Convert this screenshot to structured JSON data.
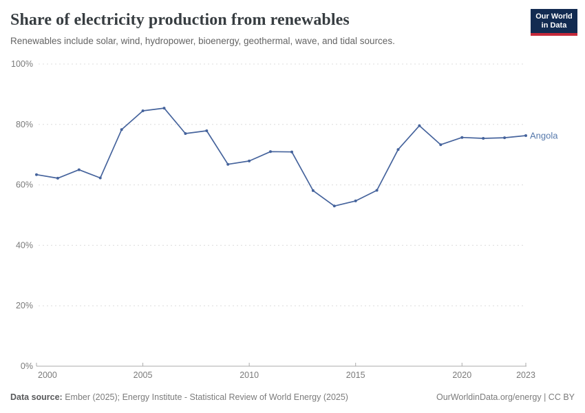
{
  "header": {
    "title": "Share of electricity production from renewables",
    "subtitle": "Renewables include solar, wind, hydropower, bioenergy, geothermal, wave, and tidal sources.",
    "logo": {
      "line1": "Our World",
      "line2": "in Data"
    }
  },
  "chart_data": {
    "type": "line",
    "title": "Share of electricity production from renewables",
    "xlabel": "",
    "ylabel": "",
    "xlim": [
      2000,
      2023
    ],
    "ylim": [
      0,
      100
    ],
    "yticks": [
      0,
      20,
      40,
      60,
      80,
      100
    ],
    "ytick_suffix": "%",
    "xticks": [
      2000,
      2005,
      2010,
      2015,
      2020,
      2023
    ],
    "grid": "horizontal-dashed",
    "legend_position": "end-of-line-label",
    "series": [
      {
        "name": "Angola",
        "color": "#45639c",
        "label_color": "#5578ab",
        "x": [
          2000,
          2001,
          2002,
          2003,
          2004,
          2005,
          2006,
          2007,
          2008,
          2009,
          2010,
          2011,
          2012,
          2013,
          2014,
          2015,
          2016,
          2017,
          2018,
          2019,
          2020,
          2021,
          2022,
          2023
        ],
        "values": [
          63.4,
          62.2,
          65.0,
          62.3,
          78.3,
          84.5,
          85.4,
          77.0,
          77.9,
          66.8,
          67.9,
          71.0,
          70.9,
          58.1,
          53.0,
          54.7,
          58.2,
          71.7,
          79.6,
          73.3,
          75.7,
          75.4,
          75.6,
          76.3
        ]
      }
    ]
  },
  "footer": {
    "datasource_label": "Data source:",
    "datasource_text": " Ember (2025); Energy Institute - Statistical Review of World Energy (2025)",
    "rights": "OurWorldinData.org/energy | CC BY"
  },
  "colors": {
    "accent_line": "#45639c",
    "grid": "#dcdcdc",
    "axis": "#ababab",
    "tick_text": "#7a7a7a",
    "title": "#373d41",
    "subtitle": "#636363",
    "logo_bg": "#122b51",
    "logo_stripe": "#c5293a"
  }
}
